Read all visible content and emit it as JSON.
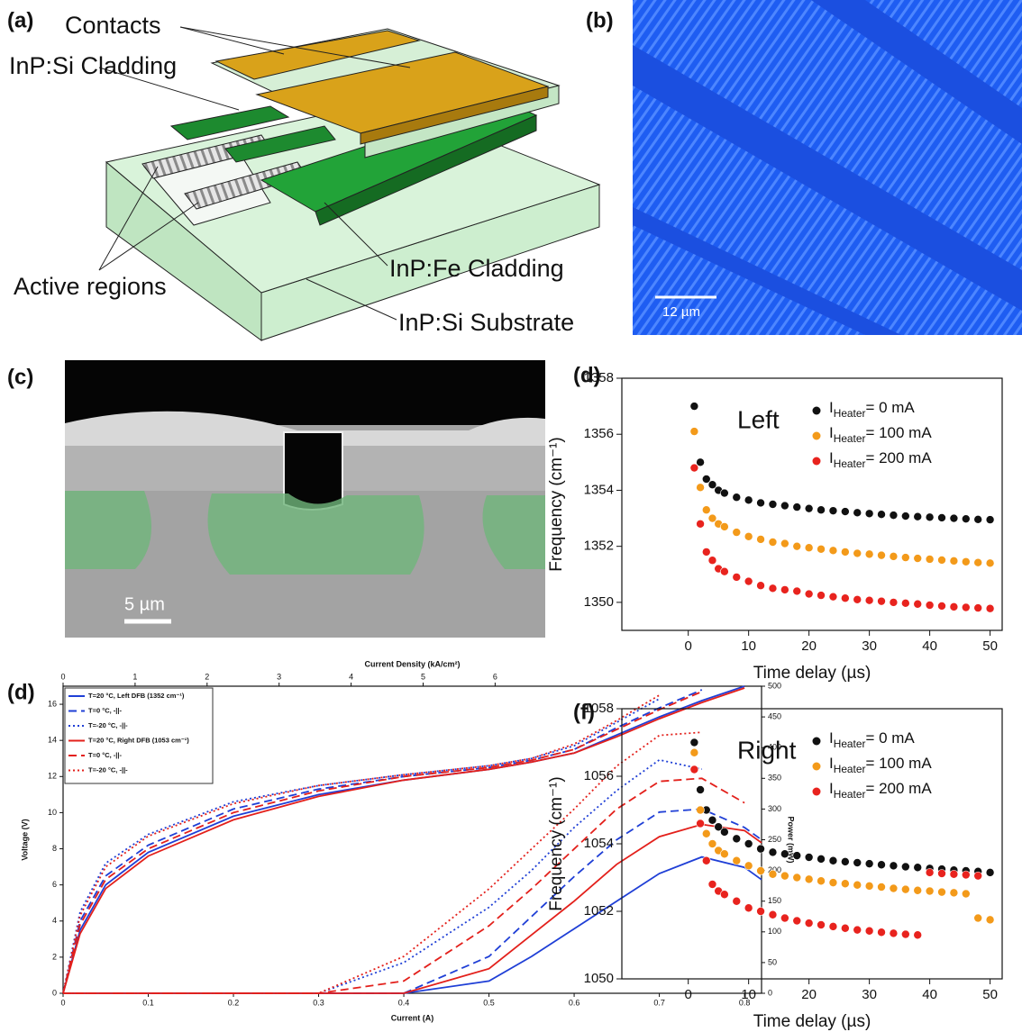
{
  "panels": [
    "(a)",
    "(b)",
    "(c)",
    "(d)",
    "(d)",
    "(f)"
  ],
  "diagram": {
    "labels": [
      "Contacts",
      "InP:Si Cladding",
      "Active regions",
      "InP:Fe Cladding",
      "InP:Si Substrate"
    ]
  },
  "micrograph": {
    "scale_bar": "12 µm"
  },
  "sem": {
    "scale_bar": "5 µm"
  },
  "chart_data": [
    {
      "type": "scatter",
      "annotation": "Left",
      "subscript": "Heater",
      "xlabel": "Time delay (µs)",
      "ylabel": "Frequency (cm⁻¹)",
      "xlim": [
        -11,
        52
      ],
      "ylim": [
        1349,
        1358
      ],
      "xticks": [
        0,
        10,
        20,
        30,
        40,
        50
      ],
      "yticks": [
        1350,
        1352,
        1354,
        1356,
        1358
      ],
      "grid": false,
      "legend": "upper right",
      "x": [
        1,
        2,
        3,
        4,
        5,
        6,
        8,
        10,
        12,
        14,
        16,
        18,
        20,
        22,
        24,
        26,
        28,
        30,
        32,
        34,
        36,
        38,
        40,
        42,
        44,
        46,
        48,
        50
      ],
      "series": [
        {
          "name": "IHeater= 0 mA",
          "color": "#111111",
          "values": [
            1357,
            1355,
            1354.4,
            1354.2,
            1354.0,
            1353.9,
            1353.75,
            1353.65,
            1353.55,
            1353.5,
            1353.45,
            1353.4,
            1353.35,
            1353.3,
            1353.27,
            1353.24,
            1353.2,
            1353.17,
            1353.14,
            1353.11,
            1353.08,
            1353.06,
            1353.04,
            1353.02,
            1353.0,
            1352.98,
            1352.96,
            1352.95
          ]
        },
        {
          "name": "IHeater= 100 mA",
          "color": "#f39a1a",
          "values": [
            1356.1,
            1354.1,
            1353.3,
            1353.0,
            1352.8,
            1352.7,
            1352.5,
            1352.35,
            1352.25,
            1352.15,
            1352.1,
            1352.0,
            1351.95,
            1351.9,
            1351.85,
            1351.8,
            1351.75,
            1351.72,
            1351.68,
            1351.64,
            1351.6,
            1351.57,
            1351.54,
            1351.51,
            1351.48,
            1351.45,
            1351.42,
            1351.4
          ]
        },
        {
          "name": "IHeater= 200 mA",
          "color": "#e8231e",
          "values": [
            1354.8,
            1352.8,
            1351.8,
            1351.5,
            1351.2,
            1351.1,
            1350.9,
            1350.75,
            1350.6,
            1350.5,
            1350.45,
            1350.4,
            1350.3,
            1350.25,
            1350.2,
            1350.15,
            1350.1,
            1350.07,
            1350.04,
            1350.0,
            1349.97,
            1349.94,
            1349.9,
            1349.87,
            1349.84,
            1349.82,
            1349.8,
            1349.78
          ]
        }
      ]
    },
    {
      "type": "line",
      "xlabel": "Current (A)",
      "ylabel": "Voltage (V)",
      "y2label": "Power (mW)",
      "x2label": "Current Density (kA/cm²)",
      "xlim": [
        0,
        0.82
      ],
      "ylim": [
        0,
        17
      ],
      "y2lim": [
        0,
        500
      ],
      "x2lim": [
        0,
        9.7
      ],
      "xticks": [
        0,
        0.1,
        0.2,
        0.3,
        0.4,
        0.5,
        0.6,
        0.7,
        0.8
      ],
      "yticks": [
        0,
        2,
        4,
        6,
        8,
        10,
        12,
        14,
        16
      ],
      "y2ticks": [
        0,
        50,
        100,
        150,
        200,
        250,
        300,
        350,
        400,
        450,
        500
      ],
      "x2ticks": [
        0,
        1,
        2,
        3,
        4,
        5,
        6
      ],
      "grid": false,
      "legend": "upper left",
      "x": [
        0,
        0.02,
        0.05,
        0.1,
        0.2,
        0.3,
        0.4,
        0.5,
        0.55,
        0.6,
        0.65,
        0.7,
        0.75,
        0.8,
        0.82
      ],
      "series": [
        {
          "name": "T=20 °C, Left DFB (1352 cm⁻¹)",
          "color": "#1f3fd6",
          "dash": "solid",
          "values": [
            0,
            3.5,
            6,
            7.8,
            9.8,
            11,
            11.8,
            12.4,
            12.8,
            13.3,
            14.3,
            15.3,
            16.2,
            17,
            null
          ]
        },
        {
          "name": "T=0 °C, -||-",
          "color": "#1f3fd6",
          "dash": "dashed",
          "values": [
            0,
            4,
            6.5,
            8.2,
            10.2,
            11.3,
            12,
            12.5,
            12.9,
            13.5,
            14.7,
            15.8,
            16.8,
            null,
            null
          ]
        },
        {
          "name": "T=-20 °C, -||-",
          "color": "#1f3fd6",
          "dash": "dotted",
          "values": [
            0,
            4.5,
            7.2,
            8.8,
            10.6,
            11.5,
            12.1,
            12.6,
            13,
            13.7,
            15,
            16.3,
            null,
            null,
            null
          ]
        },
        {
          "name": "T=20 °C, Right DFB (1053 cm⁻¹)",
          "color": "#e3201b",
          "dash": "solid",
          "values": [
            0,
            3.3,
            5.8,
            7.6,
            9.6,
            10.9,
            11.8,
            12.4,
            12.8,
            13.3,
            14.2,
            15.2,
            16.1,
            16.9,
            null
          ]
        },
        {
          "name": "T=0 °C, -||-",
          "color": "#e3201b",
          "dash": "dashed",
          "values": [
            0,
            3.8,
            6.3,
            8,
            10,
            11.2,
            12,
            12.5,
            12.9,
            13.5,
            14.6,
            15.7,
            16.7,
            null,
            null
          ]
        },
        {
          "name": "T=-20 °C, -||-",
          "color": "#e3201b",
          "dash": "dotted",
          "values": [
            0,
            4.3,
            7,
            8.7,
            10.5,
            11.5,
            12.1,
            12.6,
            13,
            13.8,
            15.1,
            16.5,
            null,
            null,
            null
          ]
        },
        {
          "color": "#1f3fd6",
          "dash": "solid",
          "axis": "y2",
          "values": [
            0,
            0,
            0,
            0,
            0,
            0,
            0,
            20,
            60,
            105,
            150,
            195,
            222,
            205,
            185
          ]
        },
        {
          "color": "#1f3fd6",
          "dash": "dashed",
          "axis": "y2",
          "values": [
            0,
            0,
            0,
            0,
            0,
            0,
            0,
            60,
            125,
            190,
            250,
            295,
            300,
            270,
            250
          ]
        },
        {
          "color": "#1f3fd6",
          "dash": "dotted",
          "axis": "y2",
          "values": [
            0,
            0,
            0,
            0,
            0,
            0,
            50,
            140,
            200,
            270,
            330,
            380,
            365,
            null,
            null
          ]
        },
        {
          "color": "#e3201b",
          "dash": "solid",
          "axis": "y2",
          "values": [
            0,
            0,
            0,
            0,
            0,
            0,
            0,
            40,
            95,
            150,
            210,
            255,
            275,
            265,
            245
          ]
        },
        {
          "color": "#e3201b",
          "dash": "dashed",
          "axis": "y2",
          "values": [
            0,
            0,
            0,
            0,
            0,
            0,
            20,
            110,
            170,
            235,
            300,
            345,
            350,
            310,
            null
          ]
        },
        {
          "color": "#e3201b",
          "dash": "dotted",
          "axis": "y2",
          "values": [
            0,
            0,
            0,
            0,
            0,
            0,
            60,
            170,
            235,
            300,
            370,
            420,
            425,
            null,
            null
          ]
        }
      ]
    },
    {
      "type": "scatter",
      "annotation": "Right",
      "subscript": "Heater",
      "xlabel": "Time delay (µs)",
      "ylabel": "Frequency (cm⁻¹)",
      "xlim": [
        -11,
        52
      ],
      "ylim": [
        1050,
        1058
      ],
      "xticks": [
        0,
        10,
        20,
        30,
        40,
        50
      ],
      "yticks": [
        1050,
        1052,
        1054,
        1056,
        1058
      ],
      "grid": false,
      "legend": "upper right",
      "x": [
        1,
        2,
        3,
        4,
        5,
        6,
        8,
        10,
        12,
        14,
        16,
        18,
        20,
        22,
        24,
        26,
        28,
        30,
        32,
        34,
        36,
        38,
        40,
        42,
        44,
        46,
        48,
        50
      ],
      "series": [
        {
          "name": "IHeater= 0 mA",
          "color": "#111111",
          "values": [
            1057,
            1055.6,
            1055.0,
            1054.7,
            1054.5,
            1054.35,
            1054.15,
            1054.0,
            1053.85,
            1053.75,
            1053.7,
            1053.65,
            1053.6,
            1053.55,
            1053.5,
            1053.47,
            1053.44,
            1053.41,
            1053.38,
            1053.35,
            1053.32,
            1053.3,
            1053.27,
            1053.25,
            1053.22,
            1053.2,
            1053.18,
            1053.15
          ]
        },
        {
          "name": "IHeater= 100 mA",
          "color": "#f39a1a",
          "values": [
            1056.7,
            1055.0,
            1054.3,
            1054.0,
            1053.8,
            1053.7,
            1053.5,
            1053.35,
            1053.2,
            1053.1,
            1053.05,
            1053.0,
            1052.95,
            1052.9,
            1052.85,
            1052.82,
            1052.78,
            1052.75,
            1052.72,
            1052.68,
            1052.65,
            1052.62,
            1052.6,
            1052.57,
            1052.55,
            1052.52,
            1051.8,
            1051.75
          ]
        },
        {
          "name": "IHeater= 200 mA",
          "color": "#e8231e",
          "values": [
            1056.2,
            1054.6,
            1053.5,
            1052.8,
            1052.6,
            1052.5,
            1052.3,
            1052.1,
            1052.0,
            1051.9,
            1051.8,
            1051.72,
            1051.65,
            1051.6,
            1051.55,
            1051.5,
            1051.45,
            1051.42,
            1051.38,
            1051.35,
            1051.32,
            1051.3,
            1053.15,
            1053.12,
            1053.1,
            1053.08,
            1053.05,
            null
          ]
        }
      ]
    }
  ]
}
